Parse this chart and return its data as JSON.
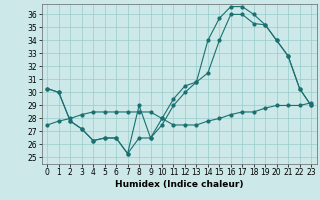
{
  "xlabel": "Humidex (Indice chaleur)",
  "bg_color": "#cce8e8",
  "line_color": "#1a7070",
  "grid_color": "#99cccc",
  "xlim": [
    -0.5,
    23.5
  ],
  "ylim": [
    24.5,
    36.8
  ],
  "xticks": [
    0,
    1,
    2,
    3,
    4,
    5,
    6,
    7,
    8,
    9,
    10,
    11,
    12,
    13,
    14,
    15,
    16,
    17,
    18,
    19,
    20,
    21,
    22,
    23
  ],
  "yticks": [
    25,
    26,
    27,
    28,
    29,
    30,
    31,
    32,
    33,
    34,
    35,
    36
  ],
  "line1_x": [
    0,
    1,
    2,
    3,
    4,
    5,
    6,
    7,
    8,
    9,
    10,
    11,
    12,
    13,
    14,
    15,
    16,
    17,
    18,
    19,
    20,
    21,
    22,
    23
  ],
  "line1_y": [
    30.3,
    30.0,
    27.8,
    27.2,
    26.3,
    26.5,
    26.5,
    25.3,
    29.0,
    26.5,
    28.0,
    29.5,
    30.5,
    30.8,
    34.0,
    35.7,
    36.6,
    36.6,
    36.0,
    35.2,
    34.0,
    32.8,
    30.3,
    29.0
  ],
  "line2_x": [
    0,
    1,
    2,
    3,
    4,
    5,
    6,
    7,
    8,
    9,
    10,
    11,
    12,
    13,
    14,
    15,
    16,
    17,
    18,
    19,
    20,
    21,
    22,
    23
  ],
  "line2_y": [
    30.3,
    30.0,
    27.8,
    27.2,
    26.3,
    26.5,
    26.5,
    25.3,
    26.5,
    26.5,
    27.5,
    29.0,
    30.0,
    30.8,
    31.5,
    34.0,
    36.0,
    36.0,
    35.3,
    35.2,
    34.0,
    32.8,
    30.3,
    29.0
  ],
  "line3_x": [
    0,
    1,
    2,
    3,
    4,
    5,
    6,
    7,
    8,
    9,
    10,
    11,
    12,
    13,
    14,
    15,
    16,
    17,
    18,
    19,
    20,
    21,
    22,
    23
  ],
  "line3_y": [
    27.5,
    27.8,
    28.0,
    28.3,
    28.5,
    28.5,
    28.5,
    28.5,
    28.5,
    28.5,
    28.0,
    27.5,
    27.5,
    27.5,
    27.8,
    28.0,
    28.3,
    28.5,
    28.5,
    28.8,
    29.0,
    29.0,
    29.0,
    29.2
  ]
}
